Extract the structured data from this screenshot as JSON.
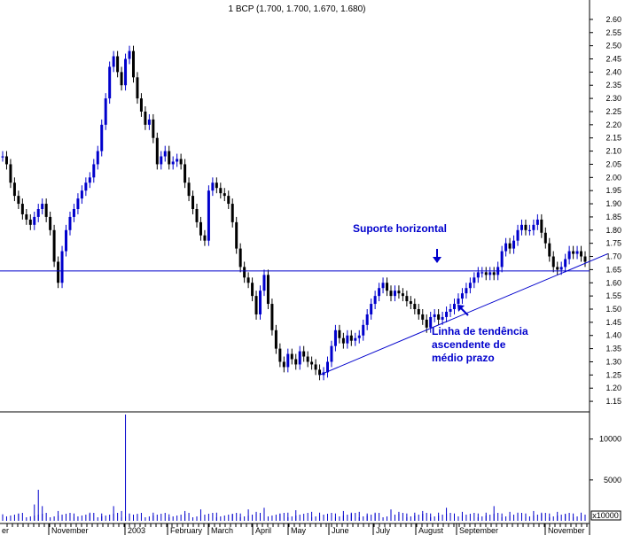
{
  "chart_data": {
    "type": "candlestick",
    "title": "1 BCP (1.700, 1.700, 1.670, 1.680)",
    "price_axis": {
      "ylim": [
        1.12,
        2.64
      ],
      "ticks": [
        "2.60",
        "2.55",
        "2.50",
        "2.45",
        "2.40",
        "2.35",
        "2.30",
        "2.25",
        "2.20",
        "2.15",
        "2.10",
        "2.05",
        "2.00",
        "1.95",
        "1.90",
        "1.85",
        "1.80",
        "1.75",
        "1.70",
        "1.65",
        "1.60",
        "1.55",
        "1.50",
        "1.45",
        "1.40",
        "1.35",
        "1.30",
        "1.25",
        "1.20",
        "1.15"
      ]
    },
    "volume_axis": {
      "ylim": [
        0,
        13000
      ],
      "ticks": [
        "10000",
        "5000"
      ],
      "unit_label": "x10000"
    },
    "x_labels": [
      "er",
      "November",
      "2003",
      "February",
      "March",
      "April",
      "May",
      "June",
      "July",
      "August",
      "September",
      "November"
    ],
    "price_series": [
      [
        0,
        2.08
      ],
      [
        1,
        2.05
      ],
      [
        2,
        1.98
      ],
      [
        3,
        1.93
      ],
      [
        4,
        1.9
      ],
      [
        5,
        1.86
      ],
      [
        6,
        1.84
      ],
      [
        7,
        1.82
      ],
      [
        8,
        1.85
      ],
      [
        9,
        1.88
      ],
      [
        10,
        1.9
      ],
      [
        11,
        1.85
      ],
      [
        12,
        1.8
      ],
      [
        13,
        1.68
      ],
      [
        14,
        1.6
      ],
      [
        15,
        1.72
      ],
      [
        16,
        1.8
      ],
      [
        17,
        1.85
      ],
      [
        18,
        1.88
      ],
      [
        19,
        1.92
      ],
      [
        20,
        1.95
      ],
      [
        21,
        1.98
      ],
      [
        22,
        2.0
      ],
      [
        23,
        2.05
      ],
      [
        24,
        2.1
      ],
      [
        25,
        2.2
      ],
      [
        26,
        2.3
      ],
      [
        27,
        2.42
      ],
      [
        28,
        2.46
      ],
      [
        29,
        2.4
      ],
      [
        30,
        2.35
      ],
      [
        31,
        2.45
      ],
      [
        32,
        2.48
      ],
      [
        33,
        2.38
      ],
      [
        34,
        2.3
      ],
      [
        35,
        2.25
      ],
      [
        36,
        2.2
      ],
      [
        37,
        2.22
      ],
      [
        38,
        2.15
      ],
      [
        39,
        2.05
      ],
      [
        40,
        2.08
      ],
      [
        41,
        2.1
      ],
      [
        42,
        2.05
      ],
      [
        43,
        2.06
      ],
      [
        44,
        2.07
      ],
      [
        45,
        2.05
      ],
      [
        46,
        1.98
      ],
      [
        47,
        1.93
      ],
      [
        48,
        1.88
      ],
      [
        49,
        1.83
      ],
      [
        50,
        1.78
      ],
      [
        51,
        1.76
      ],
      [
        52,
        1.95
      ],
      [
        53,
        1.98
      ],
      [
        54,
        1.96
      ],
      [
        55,
        1.94
      ],
      [
        56,
        1.93
      ],
      [
        57,
        1.9
      ],
      [
        58,
        1.83
      ],
      [
        59,
        1.73
      ],
      [
        60,
        1.66
      ],
      [
        61,
        1.62
      ],
      [
        62,
        1.6
      ],
      [
        63,
        1.55
      ],
      [
        64,
        1.48
      ],
      [
        65,
        1.57
      ],
      [
        66,
        1.63
      ],
      [
        67,
        1.52
      ],
      [
        68,
        1.42
      ],
      [
        69,
        1.35
      ],
      [
        70,
        1.3
      ],
      [
        71,
        1.28
      ],
      [
        72,
        1.33
      ],
      [
        73,
        1.31
      ],
      [
        74,
        1.29
      ],
      [
        75,
        1.34
      ],
      [
        76,
        1.32
      ],
      [
        77,
        1.3
      ],
      [
        78,
        1.29
      ],
      [
        79,
        1.27
      ],
      [
        80,
        1.25
      ],
      [
        81,
        1.26
      ],
      [
        82,
        1.3
      ],
      [
        83,
        1.36
      ],
      [
        84,
        1.42
      ],
      [
        85,
        1.39
      ],
      [
        86,
        1.37
      ],
      [
        87,
        1.4
      ],
      [
        88,
        1.38
      ],
      [
        89,
        1.39
      ],
      [
        90,
        1.4
      ],
      [
        91,
        1.44
      ],
      [
        92,
        1.48
      ],
      [
        93,
        1.52
      ],
      [
        94,
        1.55
      ],
      [
        95,
        1.58
      ],
      [
        96,
        1.6
      ],
      [
        97,
        1.57
      ],
      [
        98,
        1.55
      ],
      [
        99,
        1.57
      ],
      [
        100,
        1.56
      ],
      [
        101,
        1.55
      ],
      [
        102,
        1.53
      ],
      [
        103,
        1.52
      ],
      [
        104,
        1.5
      ],
      [
        105,
        1.48
      ],
      [
        106,
        1.46
      ],
      [
        107,
        1.43
      ],
      [
        108,
        1.47
      ],
      [
        109,
        1.48
      ],
      [
        110,
        1.46
      ],
      [
        111,
        1.47
      ],
      [
        112,
        1.49
      ],
      [
        113,
        1.5
      ],
      [
        114,
        1.52
      ],
      [
        115,
        1.54
      ],
      [
        116,
        1.56
      ],
      [
        117,
        1.58
      ],
      [
        118,
        1.6
      ],
      [
        119,
        1.62
      ],
      [
        120,
        1.64
      ],
      [
        121,
        1.64
      ],
      [
        122,
        1.63
      ],
      [
        123,
        1.64
      ],
      [
        124,
        1.63
      ],
      [
        125,
        1.66
      ],
      [
        126,
        1.72
      ],
      [
        127,
        1.75
      ],
      [
        128,
        1.73
      ],
      [
        129,
        1.76
      ],
      [
        130,
        1.8
      ],
      [
        131,
        1.82
      ],
      [
        132,
        1.8
      ],
      [
        133,
        1.8
      ],
      [
        134,
        1.82
      ],
      [
        135,
        1.84
      ],
      [
        136,
        1.79
      ],
      [
        137,
        1.75
      ],
      [
        138,
        1.7
      ],
      [
        139,
        1.66
      ],
      [
        140,
        1.65
      ],
      [
        141,
        1.66
      ],
      [
        142,
        1.69
      ],
      [
        143,
        1.72
      ],
      [
        144,
        1.71
      ],
      [
        145,
        1.72
      ],
      [
        146,
        1.7
      ],
      [
        147,
        1.68
      ]
    ],
    "volume_series": [
      [
        0,
        800
      ],
      [
        4,
        900
      ],
      [
        8,
        2000
      ],
      [
        9,
        3800
      ],
      [
        10,
        1800
      ],
      [
        14,
        1200
      ],
      [
        18,
        900
      ],
      [
        22,
        1000
      ],
      [
        25,
        900
      ],
      [
        28,
        1800
      ],
      [
        30,
        1200
      ],
      [
        31,
        13000
      ],
      [
        32,
        900
      ],
      [
        34,
        700
      ],
      [
        38,
        1000
      ],
      [
        42,
        800
      ],
      [
        46,
        1200
      ],
      [
        50,
        1400
      ],
      [
        54,
        1000
      ],
      [
        58,
        800
      ],
      [
        60,
        900
      ],
      [
        62,
        1400
      ],
      [
        64,
        1100
      ],
      [
        66,
        1600
      ],
      [
        70,
        900
      ],
      [
        72,
        1000
      ],
      [
        74,
        1300
      ],
      [
        78,
        1100
      ],
      [
        80,
        1000
      ],
      [
        84,
        900
      ],
      [
        86,
        1200
      ],
      [
        88,
        1000
      ],
      [
        90,
        1100
      ],
      [
        92,
        900
      ],
      [
        94,
        1000
      ],
      [
        98,
        1400
      ],
      [
        100,
        1100
      ],
      [
        102,
        900
      ],
      [
        104,
        1000
      ],
      [
        106,
        1200
      ],
      [
        108,
        900
      ],
      [
        110,
        1000
      ],
      [
        112,
        1600
      ],
      [
        114,
        900
      ],
      [
        116,
        1100
      ],
      [
        120,
        900
      ],
      [
        122,
        1000
      ],
      [
        124,
        1800
      ],
      [
        126,
        900
      ],
      [
        128,
        1100
      ],
      [
        130,
        1000
      ],
      [
        132,
        900
      ],
      [
        134,
        1200
      ],
      [
        136,
        1000
      ],
      [
        138,
        900
      ],
      [
        140,
        1100
      ],
      [
        142,
        800
      ],
      [
        144,
        900
      ],
      [
        146,
        1000
      ]
    ],
    "support_line": {
      "price": 1.645
    },
    "trend_line": {
      "from": [
        80,
        1.25
      ],
      "to": [
        150,
        1.71
      ]
    },
    "annotations": {
      "support_label": "Suporte horizontal",
      "trend_label_lines": [
        "Linha de tendência",
        "ascendente de",
        "médio prazo"
      ]
    },
    "colors": {
      "candle": "#000000",
      "wick_up": "#0000cc",
      "support_line": "#0000cc",
      "trend_line": "#0000cc",
      "annotation": "#0000cc",
      "volume": "#0000cc"
    }
  }
}
